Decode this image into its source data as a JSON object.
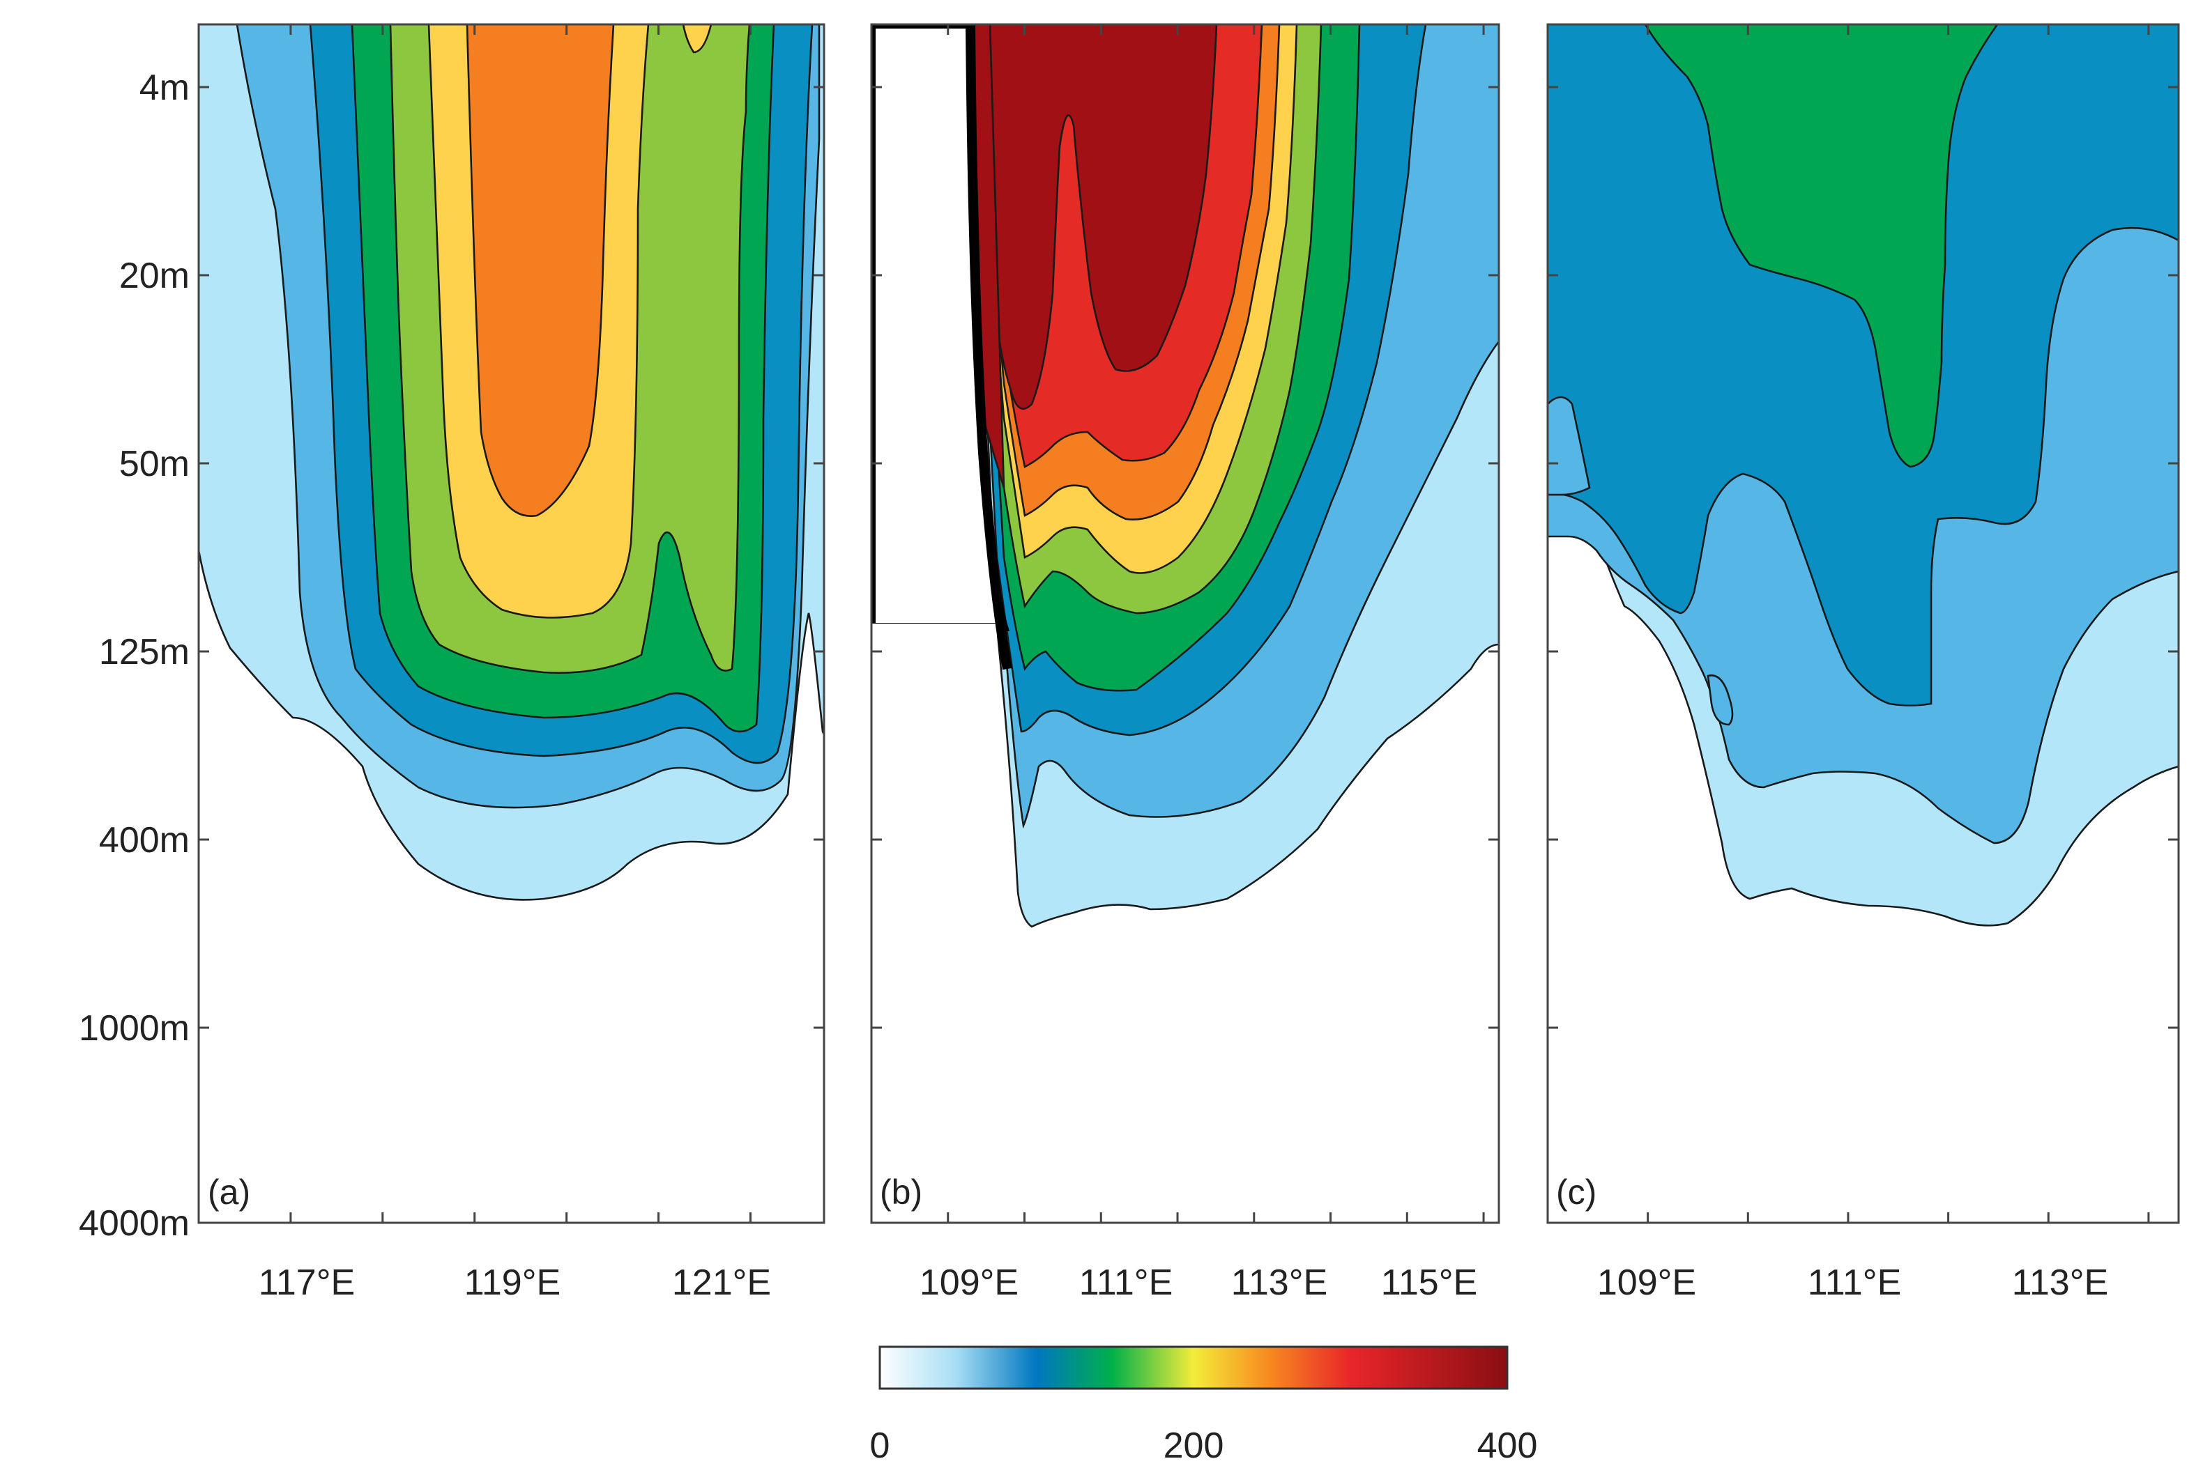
{
  "chart_data": {
    "type": "contour",
    "colormap": {
      "min": 0,
      "max": 400,
      "tick_labels": [
        "0",
        "200",
        "400"
      ],
      "levels": [
        0,
        25,
        50,
        75,
        100,
        125,
        150,
        175,
        200,
        225,
        250,
        275,
        300,
        325,
        350,
        375,
        400
      ],
      "colors": [
        "#b3e6f8",
        "#56b7e6",
        "#0a8fc2",
        "#00a651",
        "#8dc63f",
        "#ffd24d",
        "#f57f20",
        "#e52b25",
        "#a01015"
      ]
    },
    "y_axis": {
      "tick_labels": [
        "4m",
        "20m",
        "50m",
        "125m",
        "400m",
        "1000m",
        "4000m"
      ],
      "scale": "nonlinear depth"
    },
    "panels": [
      {
        "label": "(a)",
        "x_tick_labels": [
          "117°E",
          "119°E",
          "121°E"
        ],
        "x_ticks": [
          116,
          117,
          118,
          119,
          120,
          121,
          122
        ],
        "xlim": [
          116,
          122.8
        ],
        "peak_level": "orange (≈275-300)"
      },
      {
        "label": "(b)",
        "x_tick_labels": [
          "109°E",
          "111°E",
          "113°E",
          "115°E"
        ],
        "x_ticks": [
          108,
          109,
          110,
          111,
          112,
          113,
          114,
          115,
          116
        ],
        "xlim": [
          108,
          116.2
        ],
        "peak_level": "dark red (>375)"
      },
      {
        "label": "(c)",
        "x_tick_labels": [
          "109°E",
          "111°E",
          "113°E"
        ],
        "x_ticks": [
          108,
          109,
          110,
          111,
          112,
          113,
          114
        ],
        "xlim": [
          108,
          114.3
        ],
        "peak_level": "green (≈100-125)"
      }
    ]
  }
}
